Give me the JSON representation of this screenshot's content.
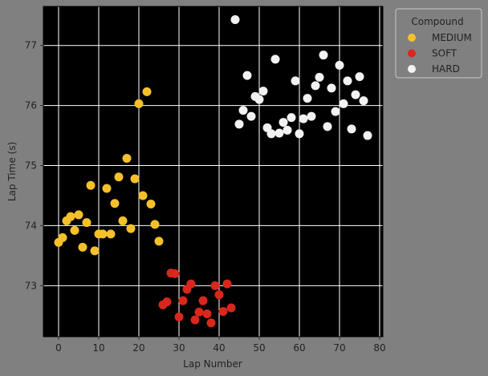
{
  "chart_data": {
    "type": "scatter",
    "title": "",
    "xlabel": "Lap Number",
    "ylabel": "Lap Time (s)",
    "xlim": [
      -3.8,
      80.8
    ],
    "ylim": [
      72.15,
      77.65
    ],
    "xticks": [
      0,
      10,
      20,
      30,
      40,
      50,
      60,
      70,
      80
    ],
    "yticks": [
      73,
      74,
      75,
      76,
      77
    ],
    "grid": true,
    "legend": {
      "title": "Compound",
      "placement": "outside-top-right"
    },
    "colors": {
      "background": "#808080",
      "plot": "#000000",
      "grid": "#ffffff"
    },
    "series": [
      {
        "name": "MEDIUM",
        "color": "#f5c12b",
        "points": [
          [
            0,
            73.72
          ],
          [
            1,
            73.8
          ],
          [
            2,
            74.08
          ],
          [
            3,
            74.15
          ],
          [
            4,
            73.92
          ],
          [
            5,
            74.18
          ],
          [
            6,
            73.64
          ],
          [
            7,
            74.05
          ],
          [
            8,
            74.67
          ],
          [
            9,
            73.58
          ],
          [
            10,
            73.86
          ],
          [
            11,
            73.86
          ],
          [
            12,
            74.62
          ],
          [
            13,
            73.86
          ],
          [
            14,
            74.37
          ],
          [
            15,
            74.81
          ],
          [
            16,
            74.08
          ],
          [
            17,
            75.12
          ],
          [
            18,
            73.95
          ],
          [
            19,
            74.78
          ],
          [
            20,
            76.03
          ],
          [
            21,
            74.5
          ],
          [
            22,
            76.23
          ],
          [
            23,
            74.36
          ],
          [
            24,
            74.02
          ],
          [
            25,
            73.74
          ]
        ]
      },
      {
        "name": "SOFT",
        "color": "#d9271e",
        "points": [
          [
            26,
            72.68
          ],
          [
            27,
            72.73
          ],
          [
            28,
            73.21
          ],
          [
            29,
            73.2
          ],
          [
            30,
            72.48
          ],
          [
            31,
            72.75
          ],
          [
            32,
            72.94
          ],
          [
            33,
            73.03
          ],
          [
            34,
            72.43
          ],
          [
            35,
            72.56
          ],
          [
            36,
            72.75
          ],
          [
            37,
            72.53
          ],
          [
            38,
            72.38
          ],
          [
            39,
            73.0
          ],
          [
            40,
            72.85
          ],
          [
            41,
            72.57
          ],
          [
            42,
            73.03
          ],
          [
            43,
            72.63
          ]
        ]
      },
      {
        "name": "HARD",
        "color": "#f2f2f2",
        "points": [
          [
            44,
            77.43
          ],
          [
            45,
            75.69
          ],
          [
            46,
            75.92
          ],
          [
            47,
            76.5
          ],
          [
            48,
            75.82
          ],
          [
            49,
            76.15
          ],
          [
            50,
            76.1
          ],
          [
            51,
            76.24
          ],
          [
            52,
            75.63
          ],
          [
            53,
            75.53
          ],
          [
            54,
            76.77
          ],
          [
            55,
            75.54
          ],
          [
            56,
            75.72
          ],
          [
            57,
            75.59
          ],
          [
            58,
            75.8
          ],
          [
            59,
            76.41
          ],
          [
            60,
            75.53
          ],
          [
            61,
            75.78
          ],
          [
            62,
            76.12
          ],
          [
            63,
            75.82
          ],
          [
            64,
            76.33
          ],
          [
            65,
            76.47
          ],
          [
            66,
            76.84
          ],
          [
            67,
            75.65
          ],
          [
            68,
            76.29
          ],
          [
            69,
            75.9
          ],
          [
            70,
            76.67
          ],
          [
            71,
            76.03
          ],
          [
            72,
            76.41
          ],
          [
            73,
            75.61
          ],
          [
            74,
            76.18
          ],
          [
            75,
            76.48
          ],
          [
            76,
            76.08
          ],
          [
            77,
            75.5
          ]
        ]
      }
    ]
  }
}
